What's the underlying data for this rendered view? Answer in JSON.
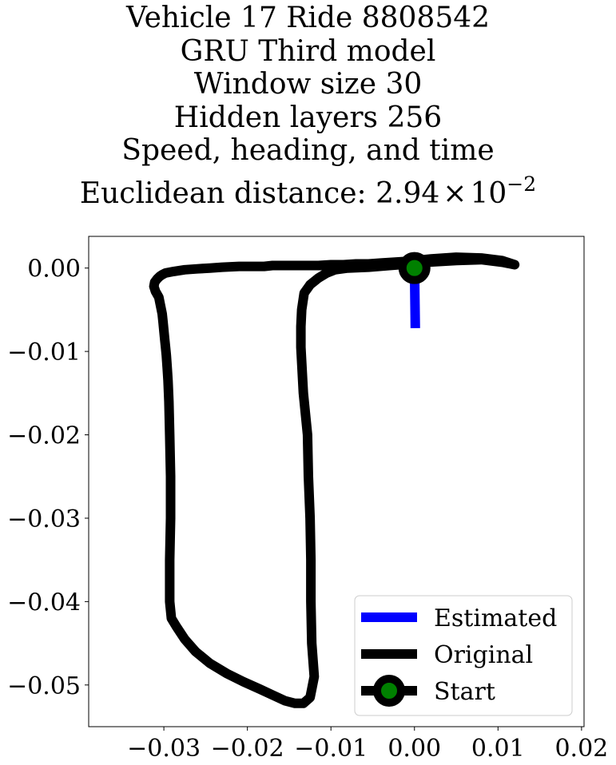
{
  "chart_data": {
    "type": "line",
    "title_lines": [
      "Vehicle 17 Ride 8808542",
      "GRU Third model",
      "Window size 30",
      "Hidden layers 256",
      "Speed, heading, and time"
    ],
    "title_metric_prefix": "Euclidean distance: 2.94",
    "title_metric_times": "×",
    "title_metric_base": "10",
    "title_metric_exp": "−2",
    "xlabel": "",
    "ylabel": "",
    "xlim": [
      -0.039,
      0.0203
    ],
    "ylim": [
      -0.055,
      0.0038
    ],
    "x_ticks": [
      -0.03,
      -0.02,
      -0.01,
      0.0,
      0.01,
      0.02
    ],
    "x_tick_labels": [
      "−0.03",
      "−0.02",
      "−0.01",
      "0.00",
      "0.01",
      "0.02"
    ],
    "y_ticks": [
      0.0,
      -0.01,
      -0.02,
      -0.03,
      -0.04,
      -0.05
    ],
    "y_tick_labels": [
      "0.00",
      "−0.01",
      "−0.02",
      "−0.03",
      "−0.04",
      "−0.05"
    ],
    "grid": false,
    "legend_position": "lower right",
    "series": [
      {
        "name": "Estimated",
        "color": "#0000ff",
        "x": [
          0.0,
          0.0001
        ],
        "y": [
          0.0,
          -0.0072
        ]
      },
      {
        "name": "Original",
        "color": "#000000",
        "x": [
          0.0,
          0.002,
          0.005,
          0.008,
          0.0105,
          0.012,
          0.0105,
          0.008,
          0.005,
          0.0015,
          -0.0005,
          -0.003,
          -0.0055,
          -0.008,
          -0.0095,
          -0.0105,
          -0.0115,
          -0.0125,
          -0.0132,
          -0.0135,
          -0.0136,
          -0.0136,
          -0.0133,
          -0.0128,
          -0.0127,
          -0.0125,
          -0.0124,
          -0.0124,
          -0.0123,
          -0.012,
          -0.0123,
          -0.0125,
          -0.0133,
          -0.0143,
          -0.0155,
          -0.017,
          -0.0185,
          -0.0205,
          -0.0225,
          -0.0245,
          -0.0262,
          -0.0275,
          -0.0285,
          -0.0291,
          -0.0293,
          -0.0293,
          -0.0292,
          -0.0292,
          -0.0293,
          -0.0294,
          -0.0295,
          -0.0296,
          -0.0297,
          -0.0298,
          -0.0299,
          -0.03,
          -0.0301,
          -0.0302,
          -0.0304,
          -0.0306,
          -0.031,
          -0.0312,
          -0.0311,
          -0.0308,
          -0.0305,
          -0.0302,
          -0.0298,
          -0.0288,
          -0.0275,
          -0.026,
          -0.0245,
          -0.023,
          -0.021,
          -0.0195,
          -0.018,
          -0.017,
          -0.016,
          -0.0145,
          -0.013,
          -0.0115,
          -0.01,
          -0.0085,
          -0.007,
          -0.0055,
          -0.004,
          -0.0025,
          -0.001,
          0.0
        ],
        "y": [
          0.0009,
          0.0011,
          0.0013,
          0.0012,
          0.0009,
          0.0004,
          0.0007,
          0.001,
          0.0009,
          0.0007,
          0.0005,
          0.0003,
          0.0001,
          0.0,
          -0.0002,
          -0.0006,
          -0.0012,
          -0.002,
          -0.003,
          -0.005,
          -0.007,
          -0.0095,
          -0.015,
          -0.02,
          -0.025,
          -0.03,
          -0.035,
          -0.04,
          -0.045,
          -0.049,
          -0.0505,
          -0.0515,
          -0.0522,
          -0.0522,
          -0.0519,
          -0.0512,
          -0.0505,
          -0.0496,
          -0.0486,
          -0.0474,
          -0.046,
          -0.0445,
          -0.043,
          -0.042,
          -0.04,
          -0.035,
          -0.03,
          -0.025,
          -0.02,
          -0.016,
          -0.0135,
          -0.012,
          -0.0105,
          -0.0095,
          -0.0085,
          -0.0075,
          -0.0065,
          -0.0055,
          -0.0045,
          -0.0035,
          -0.0028,
          -0.0022,
          -0.0017,
          -0.0013,
          -0.001,
          -0.0008,
          -0.0006,
          -0.0004,
          -0.0002,
          -0.0001,
          0.0,
          0.0001,
          0.0002,
          0.0002,
          0.0002,
          0.0003,
          0.0003,
          0.0003,
          0.0003,
          0.0003,
          0.0004,
          0.0004,
          0.0005,
          0.0005,
          0.0006,
          0.0007,
          0.0008,
          0.0009
        ]
      },
      {
        "name": "Start",
        "color": "#000000",
        "marker_color": "#008000",
        "x": [
          0.0
        ],
        "y": [
          0.0
        ]
      }
    ]
  }
}
